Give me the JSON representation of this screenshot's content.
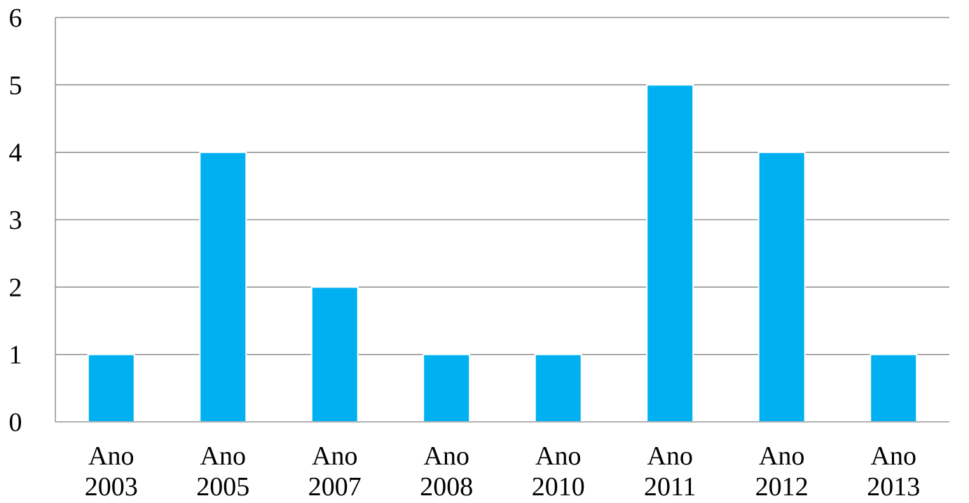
{
  "chart_data": {
    "type": "bar",
    "title": "",
    "xlabel": "",
    "ylabel": "",
    "categories": [
      [
        "Ano",
        "2003"
      ],
      [
        "Ano",
        "2005"
      ],
      [
        "Ano",
        "2007"
      ],
      [
        "Ano",
        "2008"
      ],
      [
        "Ano",
        "2010"
      ],
      [
        "Ano",
        "2011"
      ],
      [
        "Ano",
        "2012"
      ],
      [
        "Ano",
        "2013"
      ]
    ],
    "values": [
      1,
      4,
      2,
      1,
      1,
      5,
      4,
      1
    ],
    "ylim": [
      0,
      6
    ],
    "yticks": [
      "0",
      "1",
      "2",
      "3",
      "4",
      "5",
      "6"
    ],
    "grid": true,
    "legend": "none",
    "bar_color": "#00B0F0",
    "grid_color": "#808080"
  }
}
